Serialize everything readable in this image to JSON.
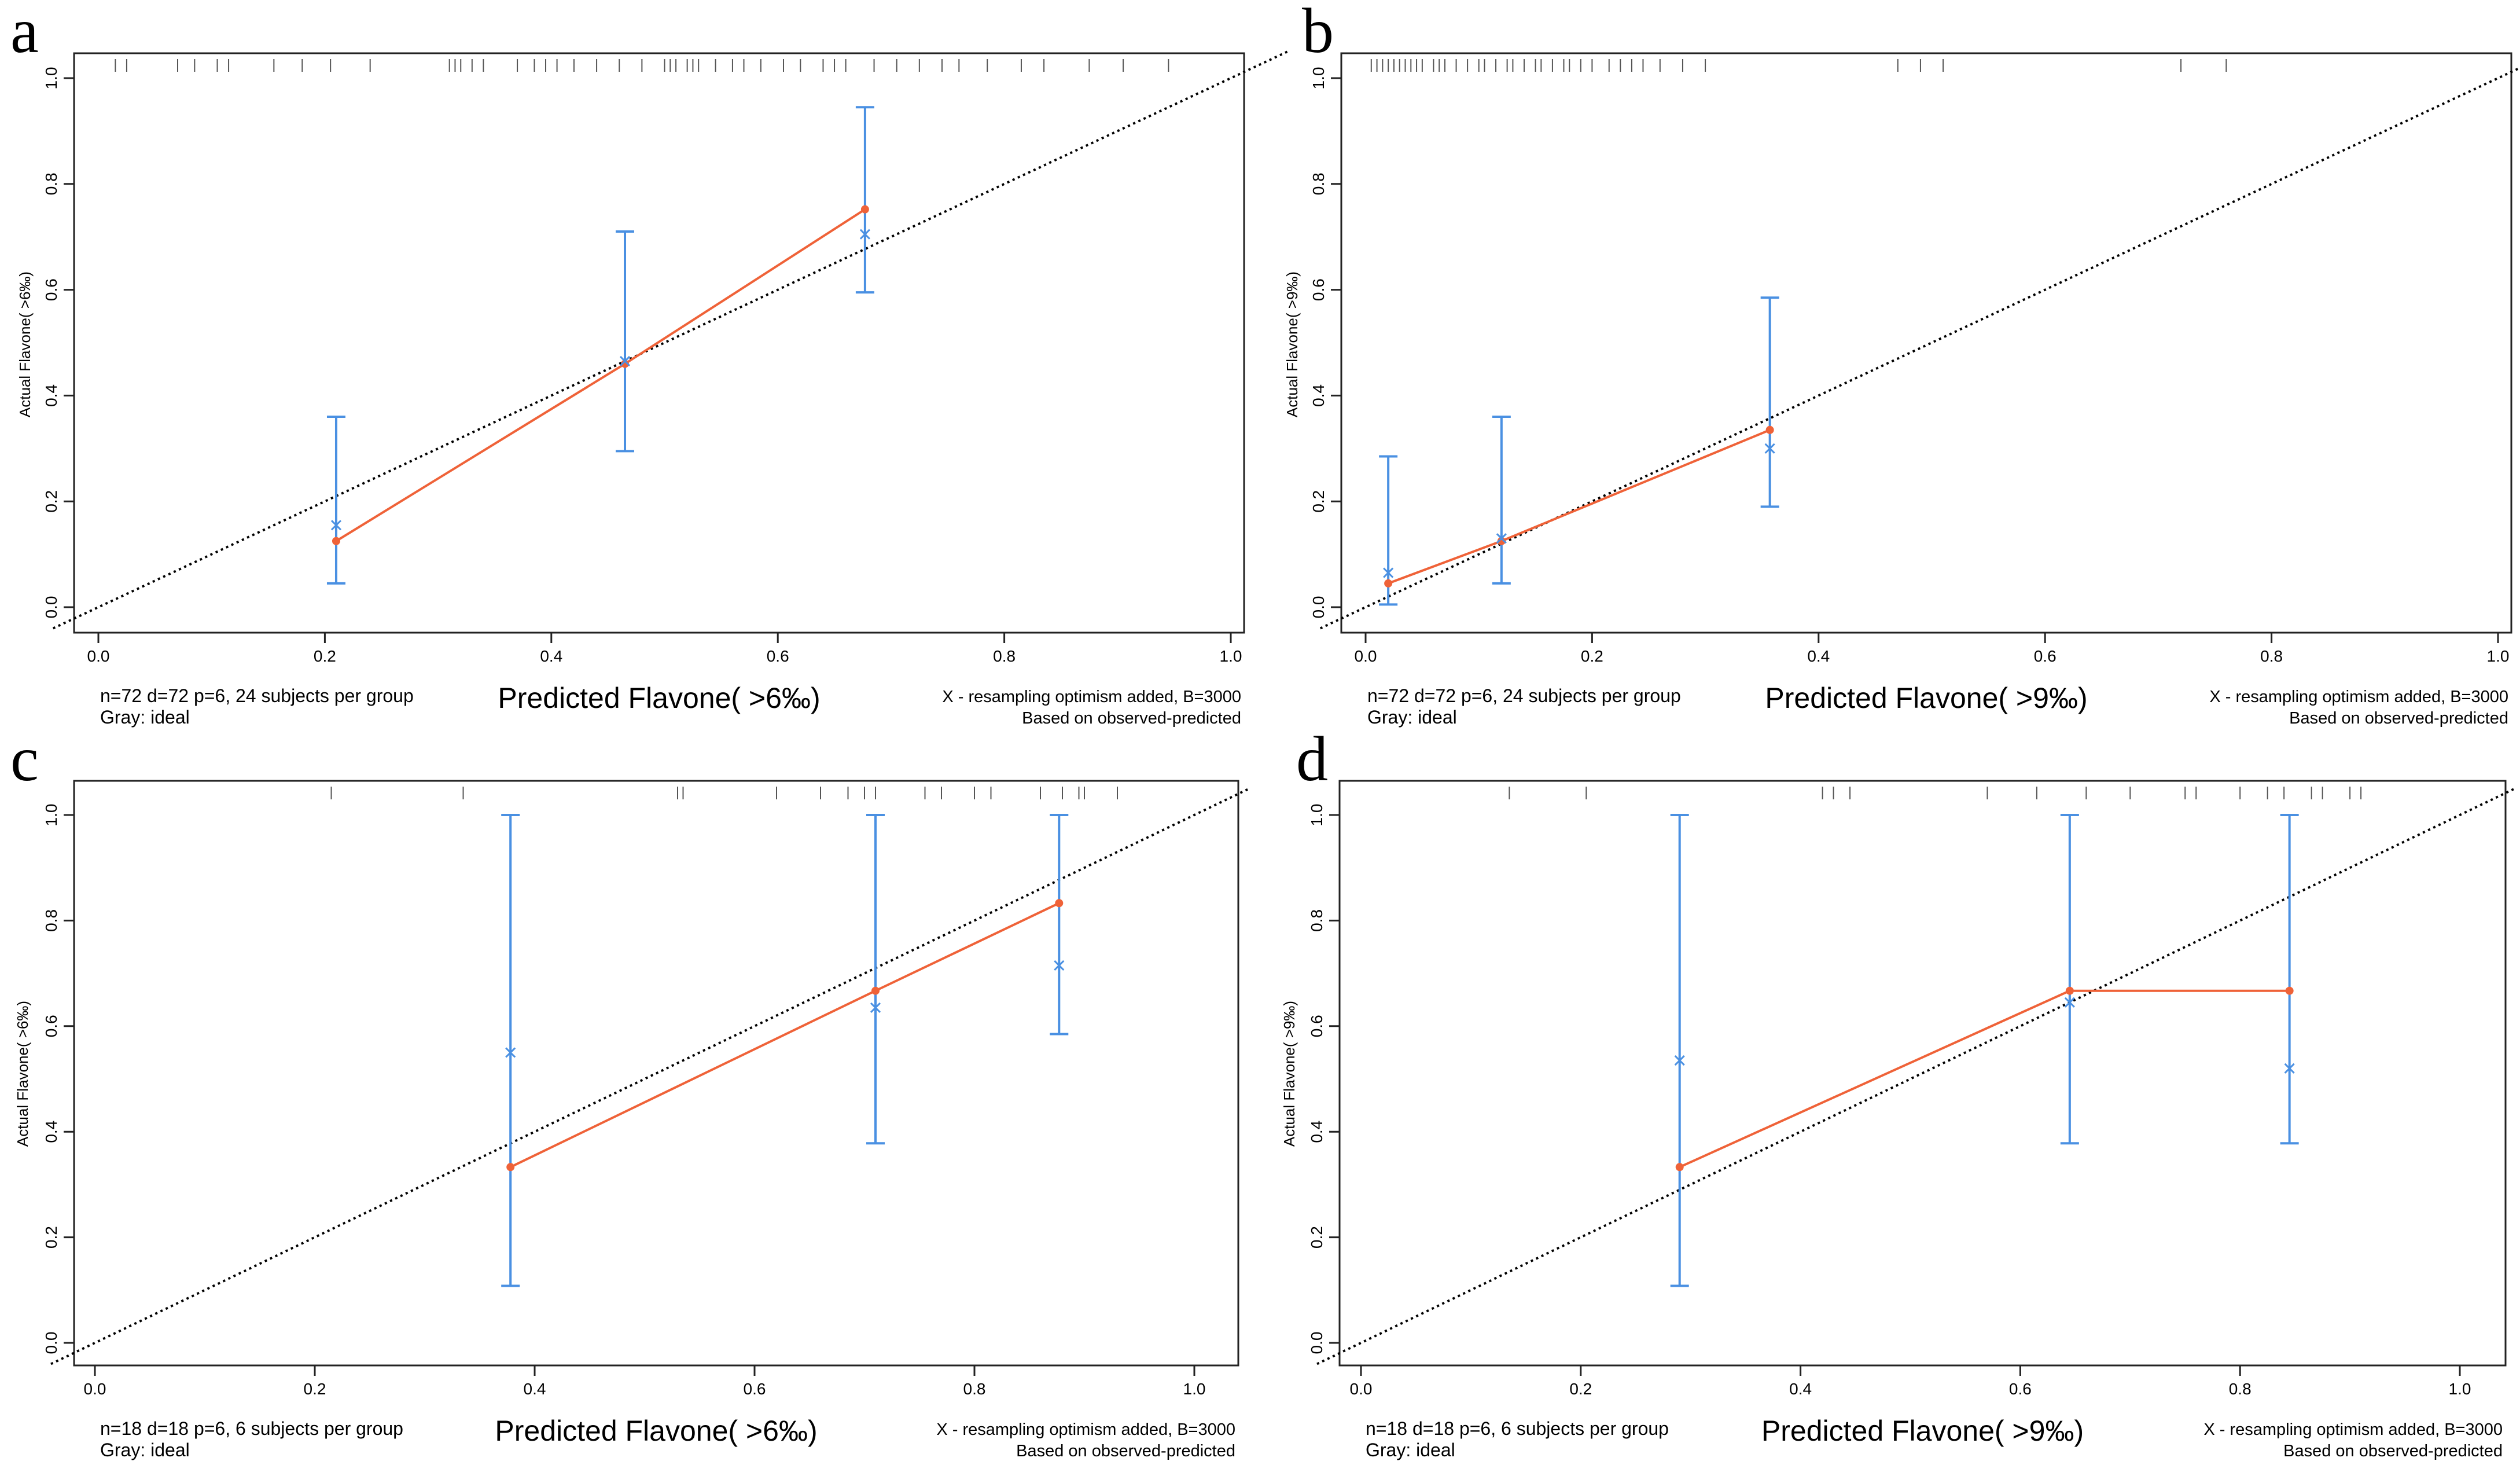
{
  "chart_data": [
    {
      "type": "scatter",
      "panel_label": "a",
      "title": "",
      "xlabel": "Predicted Flavone( >6‰)",
      "ylabel": "Actual Flavone( >6‰)",
      "xlim": [
        0,
        1
      ],
      "ylim": [
        0,
        1
      ],
      "xticks": [
        "0.0",
        "0.2",
        "0.4",
        "0.6",
        "0.8",
        "1.0"
      ],
      "yticks": [
        "0.0",
        "0.2",
        "0.4",
        "0.6",
        "0.8",
        "1.0"
      ],
      "note_left": [
        "n=72 d=72 p=6, 24 subjects per group",
        "Gray: ideal"
      ],
      "note_right": [
        "X - resampling optimism added, B=3000",
        "Based on observed-predicted"
      ],
      "series": [
        {
          "name": "observed",
          "x": [
            0.21,
            0.465,
            0.677
          ],
          "y": [
            0.125,
            0.46,
            0.752
          ]
        },
        {
          "name": "bias-corrected",
          "x": [
            0.21,
            0.465,
            0.677
          ],
          "y": [
            0.155,
            0.465,
            0.705
          ]
        },
        {
          "name": "ci",
          "x": [
            0.21,
            0.465,
            0.677
          ],
          "lower": [
            0.045,
            0.295,
            0.595
          ],
          "upper": [
            0.36,
            0.71,
            0.945
          ]
        }
      ],
      "ideal_line": [
        [
          0,
          0
        ],
        [
          1,
          1
        ]
      ],
      "rug": [
        0.015,
        0.025,
        0.07,
        0.085,
        0.105,
        0.115,
        0.155,
        0.18,
        0.205,
        0.24,
        0.31,
        0.315,
        0.32,
        0.33,
        0.34,
        0.37,
        0.385,
        0.395,
        0.405,
        0.42,
        0.44,
        0.46,
        0.48,
        0.5,
        0.505,
        0.51,
        0.52,
        0.525,
        0.53,
        0.545,
        0.56,
        0.57,
        0.585,
        0.605,
        0.62,
        0.64,
        0.65,
        0.66,
        0.685,
        0.705,
        0.725,
        0.745,
        0.76,
        0.785,
        0.815,
        0.835,
        0.875,
        0.905,
        0.945
      ]
    },
    {
      "type": "scatter",
      "panel_label": "b",
      "title": "",
      "xlabel": "Predicted Flavone( >9‰)",
      "ylabel": "Actual Flavone( >9‰)",
      "xlim": [
        0,
        1
      ],
      "ylim": [
        0,
        1
      ],
      "xticks": [
        "0.0",
        "0.2",
        "0.4",
        "0.6",
        "0.8",
        "1.0"
      ],
      "yticks": [
        "0.0",
        "0.2",
        "0.4",
        "0.6",
        "0.8",
        "1.0"
      ],
      "note_left": [
        "n=72 d=72 p=6, 24 subjects per group",
        "Gray: ideal"
      ],
      "note_right": [
        "X - resampling optimism added, B=3000",
        "Based on observed-predicted"
      ],
      "series": [
        {
          "name": "observed",
          "x": [
            0.02,
            0.12,
            0.357
          ],
          "y": [
            0.045,
            0.125,
            0.335
          ]
        },
        {
          "name": "bias-corrected",
          "x": [
            0.02,
            0.12,
            0.357
          ],
          "y": [
            0.065,
            0.13,
            0.3
          ]
        },
        {
          "name": "ci",
          "x": [
            0.02,
            0.12,
            0.357
          ],
          "lower": [
            0.005,
            0.045,
            0.19
          ],
          "upper": [
            0.285,
            0.36,
            0.585
          ]
        }
      ],
      "ideal_line": [
        [
          0,
          0
        ],
        [
          1,
          1
        ]
      ],
      "rug": [
        0.005,
        0.01,
        0.015,
        0.02,
        0.025,
        0.03,
        0.035,
        0.04,
        0.045,
        0.05,
        0.06,
        0.065,
        0.07,
        0.08,
        0.09,
        0.1,
        0.105,
        0.115,
        0.125,
        0.13,
        0.14,
        0.15,
        0.155,
        0.165,
        0.175,
        0.18,
        0.19,
        0.2,
        0.215,
        0.225,
        0.235,
        0.245,
        0.26,
        0.28,
        0.3,
        0.47,
        0.49,
        0.51,
        0.72,
        0.76
      ]
    },
    {
      "type": "scatter",
      "panel_label": "c",
      "title": "",
      "xlabel": "Predicted Flavone( >6‰)",
      "ylabel": "Actual Flavone( >6‰)",
      "xlim": [
        0,
        1
      ],
      "ylim": [
        0,
        1
      ],
      "xticks": [
        "0.0",
        "0.2",
        "0.4",
        "0.6",
        "0.8",
        "1.0"
      ],
      "yticks": [
        "0.0",
        "0.2",
        "0.4",
        "0.6",
        "0.8",
        "1.0"
      ],
      "note_left": [
        "n=18 d=18 p=6, 6 subjects per group",
        "Gray: ideal"
      ],
      "note_right": [
        "X - resampling optimism added, B=3000",
        "Based on observed-predicted"
      ],
      "series": [
        {
          "name": "observed",
          "x": [
            0.378,
            0.71,
            0.877
          ],
          "y": [
            0.333,
            0.667,
            0.833
          ]
        },
        {
          "name": "bias-corrected",
          "x": [
            0.378,
            0.71,
            0.877
          ],
          "y": [
            0.55,
            0.635,
            0.715
          ]
        },
        {
          "name": "ci",
          "x": [
            0.378,
            0.71,
            0.877
          ],
          "lower": [
            0.108,
            0.378,
            0.585
          ],
          "upper": [
            1.0,
            1.0,
            1.0
          ]
        }
      ],
      "ideal_line": [
        [
          0,
          0
        ],
        [
          1,
          1
        ]
      ],
      "rug": [
        0.215,
        0.335,
        0.53,
        0.535,
        0.62,
        0.66,
        0.685,
        0.7,
        0.71,
        0.755,
        0.77,
        0.8,
        0.815,
        0.86,
        0.88,
        0.895,
        0.9,
        0.93
      ]
    },
    {
      "type": "scatter",
      "panel_label": "d",
      "title": "",
      "xlabel": "Predicted Flavone( >9‰)",
      "ylabel": "Actual Flavone( >9‰)",
      "xlim": [
        0,
        1
      ],
      "ylim": [
        0,
        1
      ],
      "xticks": [
        "0.0",
        "0.2",
        "0.4",
        "0.6",
        "0.8",
        "1.0"
      ],
      "yticks": [
        "0.0",
        "0.2",
        "0.4",
        "0.6",
        "0.8",
        "1.0"
      ],
      "note_left": [
        "n=18 d=18 p=6, 6 subjects per group",
        "Gray: ideal"
      ],
      "note_right": [
        "X - resampling optimism added, B=3000",
        "Based on observed-predicted"
      ],
      "series": [
        {
          "name": "observed",
          "x": [
            0.29,
            0.645,
            0.845
          ],
          "y": [
            0.333,
            0.667,
            0.667
          ]
        },
        {
          "name": "bias-corrected",
          "x": [
            0.29,
            0.645,
            0.845
          ],
          "y": [
            0.535,
            0.645,
            0.52
          ]
        },
        {
          "name": "ci",
          "x": [
            0.29,
            0.645,
            0.845
          ],
          "lower": [
            0.108,
            0.378,
            0.378
          ],
          "upper": [
            1.0,
            1.0,
            1.0
          ]
        }
      ],
      "ideal_line": [
        [
          0,
          0
        ],
        [
          1,
          1
        ]
      ],
      "rug": [
        0.135,
        0.205,
        0.42,
        0.43,
        0.445,
        0.57,
        0.615,
        0.66,
        0.7,
        0.75,
        0.76,
        0.8,
        0.825,
        0.84,
        0.865,
        0.875,
        0.9,
        0.91
      ]
    }
  ],
  "colors": {
    "axis": "#222222",
    "ideal": "#000000",
    "observed": "#ef6238",
    "corrected": "#4a90e2",
    "rug": "#555555"
  }
}
